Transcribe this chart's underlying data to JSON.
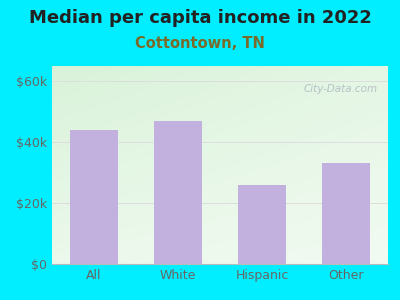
{
  "title": "Median per capita income in 2022",
  "subtitle": "Cottontown, TN",
  "categories": [
    "All",
    "White",
    "Hispanic",
    "Other"
  ],
  "values": [
    44000,
    47000,
    26000,
    33000
  ],
  "bar_color": "#c2b0de",
  "title_fontsize": 13,
  "subtitle_fontsize": 10.5,
  "subtitle_color": "#7a6a2a",
  "title_color": "#222222",
  "background_outer": "#00eeff",
  "yticks": [
    0,
    20000,
    40000,
    60000
  ],
  "ylim": [
    0,
    65000
  ],
  "tick_label_color": "#666666",
  "watermark": "City-Data.com",
  "grid_color": "#dddddd",
  "bg_gradient_colors": [
    "#d4ecd4",
    "#edfaed",
    "#f8fff8",
    "#ffffff"
  ]
}
